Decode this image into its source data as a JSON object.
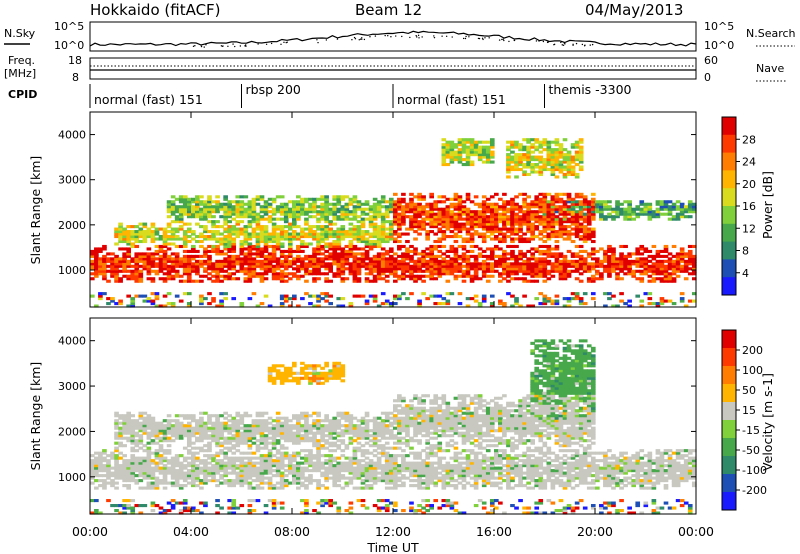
{
  "header": {
    "station": "Hokkaido (fitACF)",
    "beam": "Beam 12",
    "date": "04/May/2013"
  },
  "left_labels": {
    "nsky": "N.Sky",
    "freq": "Freq.",
    "freq_unit": "[MHz]",
    "cpid": "CPID"
  },
  "right_labels": {
    "nsearch": "N.Search",
    "nave": "Nave"
  },
  "noise_axis": {
    "left_ticks": [
      "10^5",
      "10^0"
    ],
    "right_ticks": [
      "10^5",
      "10^0"
    ]
  },
  "freq_axis": {
    "left_ticks": [
      "18",
      "8"
    ],
    "right_ticks": [
      "60",
      "0"
    ]
  },
  "cpid_segments": [
    {
      "label": "normal (fast) 151",
      "start_hr": 0,
      "end_hr": 6
    },
    {
      "label": "rbsp 200",
      "start_hr": 6,
      "end_hr": 12
    },
    {
      "label": "normal (fast) 151",
      "start_hr": 12,
      "end_hr": 18
    },
    {
      "label": "themis -3300",
      "start_hr": 18,
      "end_hr": 24
    }
  ],
  "time_axis": {
    "xlabel": "Time UT",
    "ticks": [
      "00:00",
      "04:00",
      "08:00",
      "12:00",
      "16:00",
      "20:00",
      "00:00"
    ]
  },
  "chart_data": [
    {
      "type": "heatmap",
      "name": "power",
      "ylabel": "Slant Range [km]",
      "xlim": [
        0,
        24
      ],
      "ylim": [
        180,
        4500
      ],
      "yticks": [
        "1000",
        "2000",
        "3000",
        "4000"
      ],
      "colorbar": {
        "label": "Power [dB]",
        "ticks": [
          "4",
          "8",
          "12",
          "16",
          "20",
          "24",
          "28"
        ],
        "colors": [
          "#1a1aff",
          "#1e4fb5",
          "#2f8a6a",
          "#46a84a",
          "#7fd03a",
          "#d9dc1e",
          "#ffb400",
          "#ff7d00",
          "#ff3a00",
          "#e00000"
        ]
      },
      "bands": [
        {
          "t0": 0,
          "t1": 24,
          "r0": 700,
          "r1": 1500,
          "level": 0.9
        },
        {
          "t0": 1,
          "t1": 12,
          "r0": 1500,
          "r1": 2000,
          "level": 0.55
        },
        {
          "t0": 3,
          "t1": 12,
          "r0": 2000,
          "r1": 2600,
          "level": 0.45
        },
        {
          "t0": 12,
          "t1": 20,
          "r0": 1600,
          "r1": 2700,
          "level": 0.85
        },
        {
          "t0": 18,
          "t1": 24,
          "r0": 2100,
          "r1": 2500,
          "level": 0.35
        },
        {
          "t0": 14,
          "t1": 16,
          "r0": 3300,
          "r1": 3900,
          "level": 0.5
        },
        {
          "t0": 16.5,
          "t1": 19.5,
          "r0": 3000,
          "r1": 3900,
          "level": 0.55
        }
      ]
    },
    {
      "type": "heatmap",
      "name": "velocity",
      "ylabel": "Slant Range [km]",
      "xlim": [
        0,
        24
      ],
      "ylim": [
        180,
        4500
      ],
      "yticks": [
        "1000",
        "2000",
        "3000",
        "4000"
      ],
      "colorbar": {
        "label": "Velocity [m s-1]",
        "ticks": [
          "200",
          "100",
          "50",
          "15",
          "-15",
          "-50",
          "-100",
          "-200"
        ],
        "colors": [
          "#1a1aff",
          "#1e4fb5",
          "#2f8a6a",
          "#46a84a",
          "#7fd03a",
          "#c8c8c0",
          "#ffb400",
          "#ff7d00",
          "#ff3a00",
          "#e00000"
        ]
      },
      "bands": [
        {
          "t0": 0,
          "t1": 24,
          "r0": 700,
          "r1": 1600,
          "level": 0.5
        },
        {
          "t0": 1,
          "t1": 12,
          "r0": 1600,
          "r1": 2400,
          "level": 0.5
        },
        {
          "t0": 12,
          "t1": 20,
          "r0": 1600,
          "r1": 2800,
          "level": 0.5
        },
        {
          "t0": 7,
          "t1": 10,
          "r0": 3000,
          "r1": 3500,
          "level": 0.62
        },
        {
          "t0": 17.5,
          "t1": 20,
          "r0": 2200,
          "r1": 4000,
          "level": 0.38
        }
      ]
    }
  ]
}
